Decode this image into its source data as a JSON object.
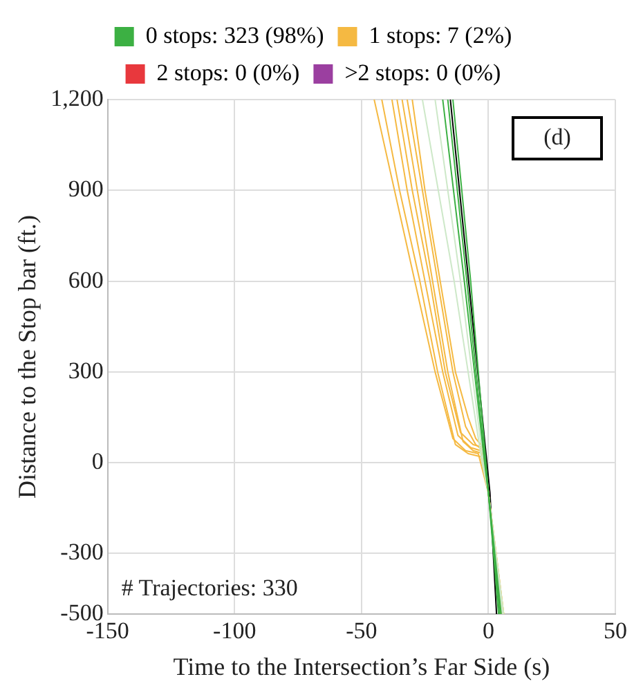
{
  "chart_data": {
    "type": "line",
    "xlabel": "Time to the Intersection’s Far Side (s)",
    "ylabel": "Distance to the Stop bar (ft.)",
    "xlim": [
      -150,
      50
    ],
    "xticks": [
      -150,
      -100,
      -50,
      0,
      50
    ],
    "ylim": [
      -500,
      1200
    ],
    "yticks": [
      -500,
      -300,
      0,
      300,
      600,
      900,
      {
        "value": 1200,
        "label": "1,200"
      }
    ],
    "grid": true,
    "legend": "top",
    "marker": "none",
    "line_style": "solid",
    "annotations": [
      "(d)",
      "# Trajectories: 330"
    ],
    "series": [
      {
        "name": "0 stops: 323 (98%)",
        "color": "#3cb043",
        "x": [
          -18,
          -9.5,
          -1.5,
          0,
          4.5
        ],
        "values": [
          1200,
          600,
          0,
          -100,
          -500
        ]
      },
      {
        "color": "#3cb043",
        "x": [
          -16,
          -8.5,
          -1.3,
          0,
          5
        ],
        "values": [
          1200,
          600,
          0,
          -100,
          -500
        ]
      },
      {
        "color": "#3cb043",
        "x": [
          -14,
          -7,
          -1,
          0,
          4
        ],
        "values": [
          1200,
          600,
          0,
          -100,
          -500
        ]
      },
      {
        "color": "#cde8c8",
        "x": [
          -21,
          -11,
          -2,
          0,
          5.5
        ],
        "values": [
          1200,
          600,
          0,
          -100,
          -500
        ]
      },
      {
        "color": "#cde8c8",
        "x": [
          -26,
          -13.5,
          -2.5,
          0,
          6
        ],
        "values": [
          1200,
          600,
          0,
          -100,
          -500
        ]
      },
      {
        "name": "1 stops: 7 (2%)",
        "color": "#f5b942",
        "x": [
          -45,
          -37,
          -29,
          -21,
          -14,
          -9,
          -4,
          0,
          6
        ],
        "values": [
          1200,
          900,
          600,
          300,
          80,
          40,
          30,
          -100,
          -500
        ]
      },
      {
        "color": "#f5b942",
        "x": [
          -42,
          -35,
          -27,
          -20,
          -13,
          -8,
          -3,
          0,
          6
        ],
        "values": [
          1200,
          900,
          600,
          300,
          60,
          30,
          20,
          -100,
          -500
        ]
      },
      {
        "color": "#f5b942",
        "x": [
          -38,
          -32,
          -25,
          -18,
          -12,
          -7,
          -3,
          0,
          5.5
        ],
        "values": [
          1200,
          900,
          600,
          300,
          90,
          50,
          40,
          -100,
          -500
        ]
      },
      {
        "color": "#f5b942",
        "x": [
          -36,
          -30,
          -23,
          -17,
          -11,
          -6,
          -2,
          0,
          5.5
        ],
        "values": [
          1200,
          900,
          600,
          300,
          100,
          60,
          50,
          -100,
          -500
        ]
      },
      {
        "color": "#f5b942",
        "x": [
          -34,
          -28,
          -22,
          -16,
          -10,
          -6,
          -2,
          0,
          5
        ],
        "values": [
          1200,
          900,
          600,
          300,
          70,
          40,
          30,
          -100,
          -500
        ]
      },
      {
        "color": "#f5b942",
        "x": [
          -32,
          -26,
          -20,
          -14,
          -9,
          -5,
          -2,
          0,
          5
        ],
        "values": [
          1200,
          900,
          600,
          300,
          120,
          60,
          40,
          -100,
          -500
        ]
      },
      {
        "color": "#f5b942",
        "x": [
          -30,
          -25,
          -19,
          -13,
          -8,
          -5,
          -2,
          0,
          5
        ],
        "values": [
          1200,
          900,
          600,
          300,
          150,
          80,
          50,
          -100,
          -500
        ]
      },
      {
        "name": "2 stops: 0 (0%)",
        "color": "#e8383d"
      },
      {
        "name": ">2 stops: 0 (0%)",
        "color": "#9b3fa0"
      },
      {
        "color": "#000000",
        "x": [
          -15,
          -7.8,
          -0.6,
          0.6,
          3.2
        ],
        "values": [
          1200,
          600,
          0,
          -100,
          -500
        ]
      }
    ]
  }
}
